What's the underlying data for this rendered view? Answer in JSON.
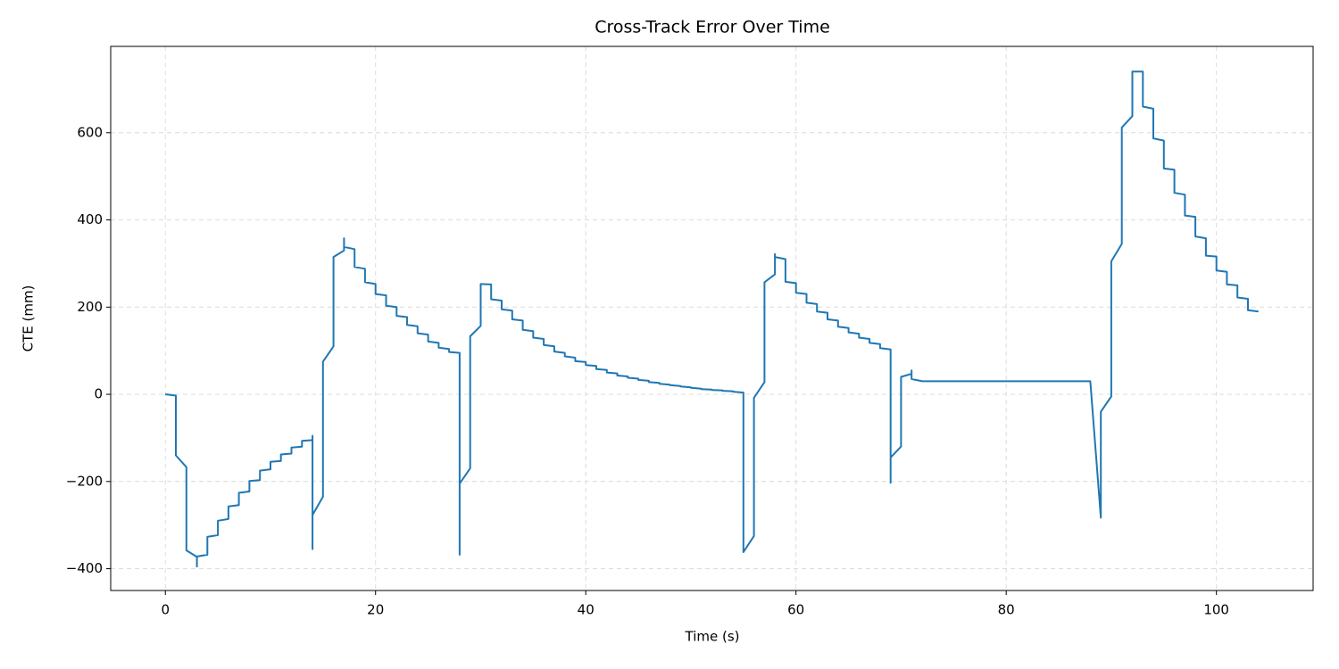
{
  "chart_data": {
    "type": "line",
    "title": "Cross-Track Error Over Time",
    "x_label": "Time (s)",
    "y_label": "CTE (mm)",
    "x": [
      0,
      1,
      1,
      2,
      2,
      3,
      3,
      3,
      4,
      4,
      5,
      5,
      6,
      6,
      7,
      7,
      8,
      8,
      9,
      9,
      10,
      10,
      11,
      11,
      12,
      12,
      13,
      13,
      14,
      14,
      14,
      14,
      15,
      15,
      16,
      16,
      17,
      17,
      17,
      18,
      18,
      19,
      19,
      20,
      20,
      21,
      21,
      22,
      22,
      23,
      23,
      24,
      24,
      25,
      25,
      26,
      26,
      27,
      27,
      28,
      28,
      28,
      29,
      29,
      30,
      30,
      31,
      31,
      32,
      32,
      33,
      33,
      34,
      34,
      35,
      35,
      36,
      36,
      37,
      37,
      38,
      38,
      39,
      39,
      40,
      40,
      41,
      41,
      42,
      42,
      43,
      43,
      44,
      44,
      45,
      45,
      46,
      46,
      47,
      47,
      48,
      48,
      49,
      49,
      50,
      50,
      51,
      51,
      52,
      52,
      53,
      53,
      54,
      54,
      55,
      55,
      56,
      56,
      57,
      57,
      58,
      58,
      58,
      59,
      59,
      60,
      60,
      61,
      61,
      62,
      62,
      63,
      63,
      64,
      64,
      65,
      65,
      66,
      66,
      67,
      67,
      68,
      68,
      69,
      69,
      69,
      70,
      70,
      71,
      71,
      71,
      72,
      88,
      89,
      89,
      90,
      90,
      91,
      91,
      92,
      92,
      93,
      93,
      94,
      94,
      95,
      95,
      96,
      96,
      97,
      97,
      98,
      98,
      99,
      99,
      100,
      100,
      101,
      101,
      102,
      102,
      103,
      103,
      104
    ],
    "series": [
      {
        "color": "#1f77b4",
        "values": [
          0,
          -3,
          -140,
          -167,
          -358,
          -373,
          -395,
          -372,
          -368,
          -327,
          -323,
          -290,
          -286,
          -257,
          -254,
          -226,
          -223,
          -199,
          -197,
          -175,
          -172,
          -155,
          -153,
          -138,
          -136,
          -122,
          -120,
          -107,
          -105,
          -95,
          -355,
          -277,
          -235,
          75,
          110,
          315,
          330,
          358,
          338,
          333,
          292,
          288,
          257,
          253,
          230,
          227,
          203,
          200,
          180,
          177,
          159,
          156,
          140,
          137,
          121,
          118,
          107,
          104,
          97,
          95,
          -368,
          -205,
          -170,
          133,
          157,
          253,
          252,
          218,
          215,
          195,
          192,
          172,
          169,
          148,
          145,
          130,
          127,
          113,
          110,
          98,
          95,
          87,
          84,
          76,
          74,
          67,
          65,
          58,
          56,
          50,
          48,
          43,
          41,
          38,
          36,
          33,
          31,
          28,
          26,
          24,
          22,
          21,
          19,
          18,
          16,
          15,
          13,
          12,
          11,
          10,
          9,
          8,
          7,
          6,
          4,
          -362,
          -325,
          -8,
          28,
          257,
          275,
          322,
          315,
          310,
          258,
          255,
          233,
          230,
          210,
          207,
          190,
          187,
          172,
          169,
          155,
          152,
          142,
          139,
          130,
          127,
          118,
          115,
          106,
          103,
          -203,
          -145,
          -120,
          40,
          47,
          55,
          35,
          30,
          30,
          -283,
          -40,
          -5,
          305,
          345,
          612,
          638,
          740,
          740,
          660,
          655,
          587,
          582,
          518,
          515,
          462,
          458,
          410,
          407,
          362,
          358,
          318,
          316,
          284,
          281,
          252,
          250,
          222,
          219,
          193,
          190
        ]
      }
    ],
    "xlim": [
      -5.2,
      109.2
    ],
    "ylim": [
      -450,
      798
    ],
    "xticks": [
      0,
      20,
      40,
      60,
      80,
      100
    ],
    "yticks": [
      {
        "value": -400,
        "label": "−400"
      },
      {
        "value": -200,
        "label": "−200"
      },
      0,
      200,
      400,
      600
    ],
    "grid": true
  }
}
